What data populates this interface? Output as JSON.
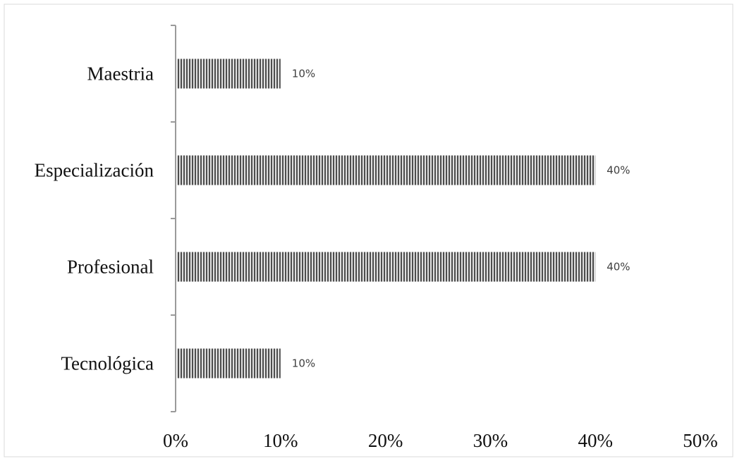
{
  "chart_data": {
    "type": "bar",
    "orientation": "horizontal",
    "categories": [
      "Maestria",
      "Especialización",
      "Profesional",
      "Tecnológica"
    ],
    "values": [
      10,
      40,
      40,
      10
    ],
    "data_labels": [
      "10%",
      "40%",
      "40%",
      "10%"
    ],
    "xlim": [
      0,
      50
    ],
    "x_ticks": [
      0,
      10,
      20,
      30,
      40,
      50
    ],
    "x_tick_labels": [
      "0%",
      "10%",
      "20%",
      "30%",
      "40%",
      "50%"
    ],
    "title": "",
    "xlabel": "",
    "ylabel": "",
    "grid": false,
    "legend": "none",
    "bar_pattern": "vertical-stripes",
    "colors": {
      "bar_dark": "#4d4d4d",
      "bar_light": "#e0e0e0",
      "axis": "#9a9a9a",
      "frame": "#d9d9d9"
    }
  }
}
